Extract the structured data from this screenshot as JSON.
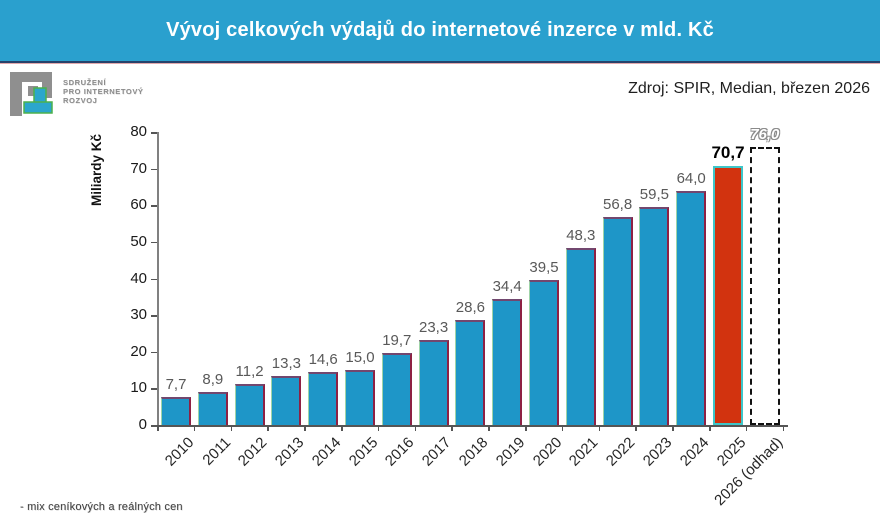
{
  "header": {
    "title": "Vývoj celkových výdajů do internetové inzerce v mld. Kč"
  },
  "logo": {
    "line1": "SDRUŽENÍ",
    "line2": "PRO INTERNETOVÝ",
    "line3": "ROZVOJ"
  },
  "source": {
    "label": "Zdroj: SPIR, Median, březen 2026"
  },
  "footnote": {
    "text": "- mix ceníkových a reálných cen"
  },
  "chart_data": {
    "type": "bar",
    "title": "Vývoj celkových výdajů do internetové inzerce v mld. Kč",
    "xlabel": "",
    "ylabel": "Miliardy Kč",
    "ylim": [
      0,
      80
    ],
    "ytick_step": 10,
    "grid": false,
    "categories": [
      "2010",
      "2011",
      "2012",
      "2013",
      "2014",
      "2015",
      "2016",
      "2017",
      "2018",
      "2019",
      "2020",
      "2021",
      "2022",
      "2023",
      "2024",
      "2025",
      "2026 (odhad)"
    ],
    "values": [
      7.7,
      8.9,
      11.2,
      13.3,
      14.6,
      15.0,
      19.7,
      23.3,
      28.6,
      34.4,
      39.5,
      48.3,
      56.8,
      59.5,
      64.0,
      70.7,
      76.0
    ],
    "labels": [
      "7,7",
      "8,9",
      "11,2",
      "13,3",
      "14,6",
      "15,0",
      "19,7",
      "23,3",
      "28,6",
      "34,4",
      "39,5",
      "48,3",
      "56,8",
      "59,5",
      "64,0",
      "70,7",
      "76,0"
    ],
    "roles": [
      "normal",
      "normal",
      "normal",
      "normal",
      "normal",
      "normal",
      "normal",
      "normal",
      "normal",
      "normal",
      "normal",
      "normal",
      "normal",
      "normal",
      "normal",
      "highlight",
      "estimate"
    ],
    "colors": {
      "header_teal": "#2AA0CE",
      "bar_blue": "#1E96C8",
      "bar_red": "#D2330F",
      "bar_red_border": "#3EC6C9",
      "estimate_border": "#111111",
      "value_text": "#595959"
    }
  }
}
